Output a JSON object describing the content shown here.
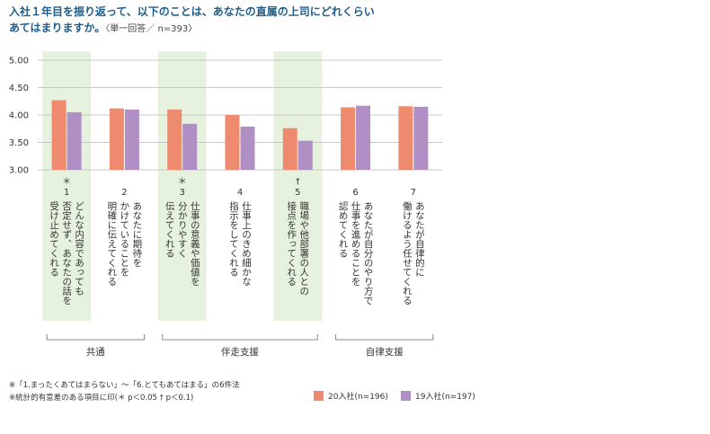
{
  "title": {
    "line1": "入社１年目を振り返って、以下のことは、あなたの直属の上司にどれくらい",
    "line2": "あてはまりますか。",
    "sub": "〈単一回答／ n=393〉"
  },
  "chart_data": {
    "type": "bar",
    "ylim": [
      3.0,
      5.0
    ],
    "yticks": [
      "5.00",
      "4.50",
      "4.00",
      "3.50",
      "3.00"
    ],
    "categories": [
      {
        "mark": "＊",
        "num": "1",
        "lines": [
          "どんな内容であっても",
          "否定せず、あなたの話を",
          "受け止めてくれる"
        ]
      },
      {
        "mark": "",
        "num": "2",
        "lines": [
          "あなたに期待を",
          "かけていることを",
          "明確に伝えてくれる"
        ]
      },
      {
        "mark": "＊",
        "num": "3",
        "lines": [
          "仕事の意義や価値を",
          "分かりやすく",
          "伝えてくれる"
        ]
      },
      {
        "mark": "",
        "num": "4",
        "lines": [
          "仕事上のきめ細かな",
          "指示をしてくれる"
        ]
      },
      {
        "mark": "†",
        "num": "5",
        "lines": [
          "職場や他部署の人との",
          "接点を作ってくれる"
        ]
      },
      {
        "mark": "",
        "num": "6",
        "lines": [
          "あなたが自分のやり方で",
          "仕事を進めることを",
          "認めてくれる"
        ]
      },
      {
        "mark": "",
        "num": "7",
        "lines": [
          "あなたが自律的に",
          "働けるよう任せてくれる"
        ]
      }
    ],
    "highlighted": [
      0,
      2,
      4
    ],
    "series": [
      {
        "name": "20入社(n=196)",
        "color": "#ee8a6e",
        "values": [
          4.27,
          4.12,
          4.1,
          4.0,
          3.76,
          4.14,
          4.16
        ]
      },
      {
        "name": "19入社(n=197)",
        "color": "#b08fc4",
        "values": [
          4.05,
          4.1,
          3.84,
          3.79,
          3.53,
          4.17,
          4.15
        ]
      }
    ],
    "groups": [
      {
        "label": "共通",
        "from": 0,
        "to": 1
      },
      {
        "label": "伴走支援",
        "from": 2,
        "to": 4
      },
      {
        "label": "自律支援",
        "from": 5,
        "to": 6
      }
    ]
  },
  "notes": [
    "※「1.まったくあてはまらない」〜「6.とてもあてはまる」の6件法",
    "※統計的有意差のある項目に印(＊ p＜0.05 † p＜0.1)"
  ]
}
